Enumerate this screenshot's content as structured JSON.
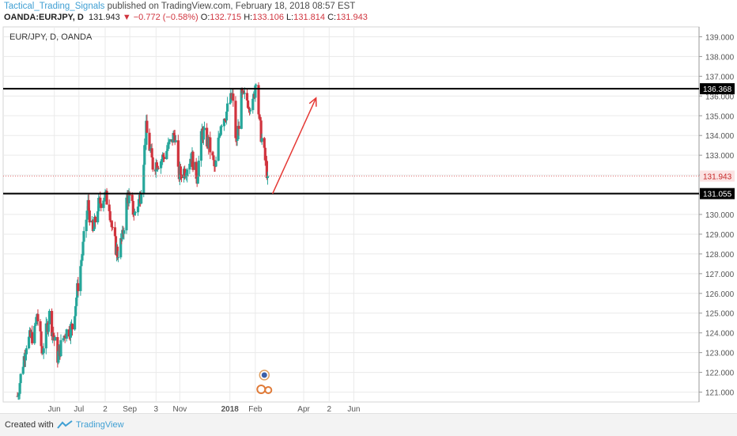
{
  "header": {
    "author": "Tactical_Trading_Signals",
    "published": "published on TradingView.com, February 18, 2018 08:57 EST",
    "symbol": "OANDA:EURJPY, D",
    "price": "131.943",
    "change": "▼ −0.772 (−0.58%)",
    "open_label": "O:",
    "open": "132.715",
    "high_label": "H:",
    "high": "133.106",
    "low_label": "L:",
    "low": "131.814",
    "close_label": "C:",
    "close": "131.943"
  },
  "footer": {
    "created": "Created with",
    "brand": "TradingView"
  },
  "colors": {
    "up": "#26a69a",
    "down": "#d0343e",
    "hline": "#000000",
    "arrow": "#e53935",
    "grid": "#eaeaea"
  },
  "chart_data": {
    "type": "candlestick",
    "title": "EUR/JPY, D, OANDA",
    "xlabel": "",
    "ylabel": "",
    "ylim": [
      120.5,
      139.5
    ],
    "y_ticks": [
      "121.000",
      "122.000",
      "123.000",
      "124.000",
      "125.000",
      "126.000",
      "127.000",
      "128.000",
      "129.000",
      "130.000",
      "131.000",
      "132.000",
      "133.000",
      "134.000",
      "135.000",
      "136.000",
      "137.000",
      "138.000",
      "139.000"
    ],
    "x_ticks": [
      "Jun",
      "Jul",
      "2",
      "Sep",
      "3",
      "Nov",
      "2018",
      "Feb",
      "Apr",
      "2",
      "Jun"
    ],
    "grid": true,
    "horizontal_levels": [
      {
        "value": 136.368,
        "label": "136.368"
      },
      {
        "value": 131.055,
        "label": "131.055"
      }
    ],
    "last_price": {
      "value": 131.943,
      "label": "131.943"
    },
    "arrow": {
      "from": {
        "date": "2018-02-22",
        "price": 131.05
      },
      "to": {
        "date": "2018-04-16",
        "price": 135.9
      }
    },
    "ohlc_path": [
      {
        "date": "2017-04-17",
        "close": 120.8
      },
      {
        "date": "2017-04-28",
        "close": 123.5
      },
      {
        "date": "2017-05-08",
        "close": 124.0
      },
      {
        "date": "2017-05-11",
        "close": 125.0
      },
      {
        "date": "2017-05-17",
        "close": 123.0
      },
      {
        "date": "2017-05-26",
        "close": 124.9
      },
      {
        "date": "2017-06-05",
        "close": 122.8
      },
      {
        "date": "2017-06-14",
        "close": 124.0
      },
      {
        "date": "2017-06-23",
        "close": 124.3
      },
      {
        "date": "2017-07-05",
        "close": 128.0
      },
      {
        "date": "2017-07-12",
        "close": 130.5
      },
      {
        "date": "2017-07-18",
        "close": 129.0
      },
      {
        "date": "2017-07-24",
        "close": 130.4
      },
      {
        "date": "2017-08-01",
        "close": 131.0
      },
      {
        "date": "2017-08-07",
        "close": 130.5
      },
      {
        "date": "2017-08-11",
        "close": 129.0
      },
      {
        "date": "2017-08-17",
        "close": 128.0
      },
      {
        "date": "2017-08-23",
        "close": 128.8
      },
      {
        "date": "2017-08-29",
        "close": 131.0
      },
      {
        "date": "2017-09-07",
        "close": 130.0
      },
      {
        "date": "2017-09-14",
        "close": 131.0
      },
      {
        "date": "2017-09-21",
        "close": 134.3
      },
      {
        "date": "2017-09-29",
        "close": 132.5
      },
      {
        "date": "2017-10-10",
        "close": 132.8
      },
      {
        "date": "2017-10-18",
        "close": 133.4
      },
      {
        "date": "2017-10-26",
        "close": 134.1
      },
      {
        "date": "2017-10-30",
        "close": 132.0
      },
      {
        "date": "2017-11-08",
        "close": 132.3
      },
      {
        "date": "2017-11-15",
        "close": 133.0
      },
      {
        "date": "2017-11-22",
        "close": 131.9
      },
      {
        "date": "2017-11-28",
        "close": 134.2
      },
      {
        "date": "2017-12-07",
        "close": 133.5
      },
      {
        "date": "2017-12-14",
        "close": 132.2
      },
      {
        "date": "2017-12-21",
        "close": 134.7
      },
      {
        "date": "2017-12-28",
        "close": 135.2
      },
      {
        "date": "2018-01-04",
        "close": 136.0
      },
      {
        "date": "2018-01-09",
        "close": 133.5
      },
      {
        "date": "2018-01-15",
        "close": 135.9
      },
      {
        "date": "2018-01-22",
        "close": 135.8
      },
      {
        "date": "2018-01-29",
        "close": 135.5
      },
      {
        "date": "2018-02-02",
        "close": 137.0
      },
      {
        "date": "2018-02-06",
        "close": 134.6
      },
      {
        "date": "2018-02-12",
        "close": 133.0
      },
      {
        "date": "2018-02-16",
        "close": 131.943
      }
    ]
  }
}
